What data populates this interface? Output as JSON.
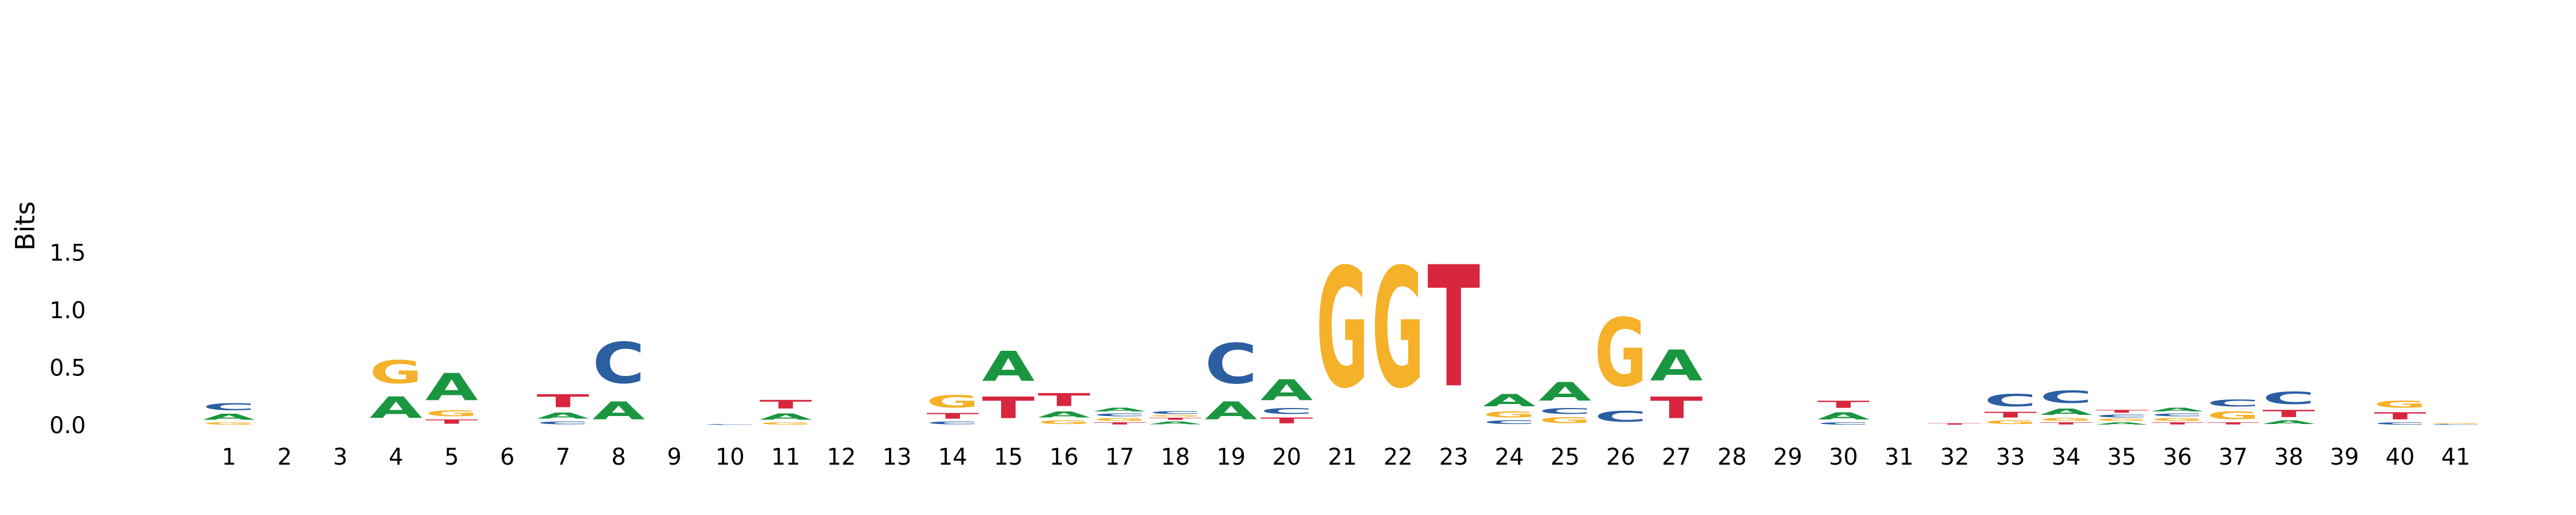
{
  "chart_data": {
    "type": "sequence-logo",
    "title": "",
    "xlabel": "",
    "ylabel": "Bits",
    "ylim": [
      0,
      1.7
    ],
    "yticks": [
      "0.0",
      "0.5",
      "1.0",
      "1.5"
    ],
    "ytick_values": [
      0,
      0.5,
      1.0,
      1.5
    ],
    "grid": false,
    "legend": "none",
    "colors": {
      "A": "#1a9641",
      "C": "#2c5ea2",
      "G": "#f5b12a",
      "T": "#d7263d"
    },
    "positions": [
      {
        "pos": 1,
        "letters": [
          {
            "b": "G",
            "h": 0.03
          },
          {
            "b": "A",
            "h": 0.08
          },
          {
            "b": "C",
            "h": 0.1
          }
        ]
      },
      {
        "pos": 2,
        "letters": []
      },
      {
        "pos": 3,
        "letters": []
      },
      {
        "pos": 4,
        "letters": [
          {
            "b": "A",
            "h": 0.3
          },
          {
            "b": "G",
            "h": 0.32
          }
        ]
      },
      {
        "pos": 5,
        "letters": [
          {
            "b": "T",
            "h": 0.06
          },
          {
            "b": "G",
            "h": 0.08
          },
          {
            "b": "A",
            "h": 0.38
          }
        ]
      },
      {
        "pos": 6,
        "letters": []
      },
      {
        "pos": 7,
        "letters": [
          {
            "b": "C",
            "h": 0.04
          },
          {
            "b": "A",
            "h": 0.08
          },
          {
            "b": "T",
            "h": 0.18
          }
        ]
      },
      {
        "pos": 8,
        "letters": [
          {
            "b": "A",
            "h": 0.25
          },
          {
            "b": "C",
            "h": 0.57
          }
        ]
      },
      {
        "pos": 9,
        "letters": []
      },
      {
        "pos": 10,
        "letters": [
          {
            "b": "C",
            "h": 0.01
          }
        ]
      },
      {
        "pos": 11,
        "letters": [
          {
            "b": "G",
            "h": 0.03
          },
          {
            "b": "A",
            "h": 0.09
          },
          {
            "b": "T",
            "h": 0.12
          }
        ]
      },
      {
        "pos": 12,
        "letters": []
      },
      {
        "pos": 13,
        "letters": []
      },
      {
        "pos": 14,
        "letters": [
          {
            "b": "C",
            "h": 0.04
          },
          {
            "b": "T",
            "h": 0.08
          },
          {
            "b": "G",
            "h": 0.17
          }
        ]
      },
      {
        "pos": 15,
        "letters": [
          {
            "b": "T",
            "h": 0.3
          },
          {
            "b": "A",
            "h": 0.42
          }
        ]
      },
      {
        "pos": 16,
        "letters": [
          {
            "b": "G",
            "h": 0.05
          },
          {
            "b": "A",
            "h": 0.08
          },
          {
            "b": "T",
            "h": 0.18
          }
        ]
      },
      {
        "pos": 17,
        "letters": [
          {
            "b": "T",
            "h": 0.03
          },
          {
            "b": "G",
            "h": 0.04
          },
          {
            "b": "C",
            "h": 0.04
          },
          {
            "b": "A",
            "h": 0.05
          }
        ]
      },
      {
        "pos": 18,
        "letters": [
          {
            "b": "A",
            "h": 0.04
          },
          {
            "b": "T",
            "h": 0.03
          },
          {
            "b": "G",
            "h": 0.02
          },
          {
            "b": "C",
            "h": 0.04
          }
        ]
      },
      {
        "pos": 19,
        "letters": [
          {
            "b": "A",
            "h": 0.25
          },
          {
            "b": "C",
            "h": 0.56
          }
        ]
      },
      {
        "pos": 20,
        "letters": [
          {
            "b": "T",
            "h": 0.08
          },
          {
            "b": "C",
            "h": 0.08
          },
          {
            "b": "A",
            "h": 0.29
          }
        ]
      },
      {
        "pos": 21,
        "letters": [
          {
            "b": "G",
            "h": 1.67
          }
        ]
      },
      {
        "pos": 22,
        "letters": [
          {
            "b": "G",
            "h": 1.67
          }
        ]
      },
      {
        "pos": 23,
        "letters": [
          {
            "b": "T",
            "h": 1.69
          }
        ]
      },
      {
        "pos": 24,
        "letters": [
          {
            "b": "C",
            "h": 0.05
          },
          {
            "b": "G",
            "h": 0.08
          },
          {
            "b": "A",
            "h": 0.17
          }
        ]
      },
      {
        "pos": 25,
        "letters": [
          {
            "b": "G",
            "h": 0.08
          },
          {
            "b": "C",
            "h": 0.08
          },
          {
            "b": "A",
            "h": 0.26
          }
        ]
      },
      {
        "pos": 26,
        "letters": [
          {
            "b": "C",
            "h": 0.15
          },
          {
            "b": "G",
            "h": 0.95
          }
        ]
      },
      {
        "pos": 27,
        "letters": [
          {
            "b": "T",
            "h": 0.3
          },
          {
            "b": "A",
            "h": 0.43
          }
        ]
      },
      {
        "pos": 28,
        "letters": []
      },
      {
        "pos": 29,
        "letters": []
      },
      {
        "pos": 30,
        "letters": [
          {
            "b": "C",
            "h": 0.03
          },
          {
            "b": "A",
            "h": 0.1
          },
          {
            "b": "T",
            "h": 0.1
          }
        ]
      },
      {
        "pos": 31,
        "letters": []
      },
      {
        "pos": 32,
        "letters": [
          {
            "b": "T",
            "h": 0.02
          }
        ]
      },
      {
        "pos": 33,
        "letters": [
          {
            "b": "G",
            "h": 0.05
          },
          {
            "b": "T",
            "h": 0.08
          },
          {
            "b": "C",
            "h": 0.17
          }
        ]
      },
      {
        "pos": 34,
        "letters": [
          {
            "b": "T",
            "h": 0.03
          },
          {
            "b": "G",
            "h": 0.04
          },
          {
            "b": "A",
            "h": 0.09
          },
          {
            "b": "C",
            "h": 0.17
          }
        ]
      },
      {
        "pos": 35,
        "letters": [
          {
            "b": "A",
            "h": 0.03
          },
          {
            "b": "G",
            "h": 0.03
          },
          {
            "b": "C",
            "h": 0.04
          },
          {
            "b": "T",
            "h": 0.04
          }
        ]
      },
      {
        "pos": 36,
        "letters": [
          {
            "b": "T",
            "h": 0.03
          },
          {
            "b": "G",
            "h": 0.04
          },
          {
            "b": "C",
            "h": 0.04
          },
          {
            "b": "A",
            "h": 0.05
          }
        ]
      },
      {
        "pos": 37,
        "letters": [
          {
            "b": "T",
            "h": 0.03
          },
          {
            "b": "G",
            "h": 0.11
          },
          {
            "b": "C",
            "h": 0.1
          }
        ]
      },
      {
        "pos": 38,
        "letters": [
          {
            "b": "A",
            "h": 0.05
          },
          {
            "b": "T",
            "h": 0.1
          },
          {
            "b": "C",
            "h": 0.17
          }
        ]
      },
      {
        "pos": 39,
        "letters": []
      },
      {
        "pos": 40,
        "letters": [
          {
            "b": "C",
            "h": 0.03
          },
          {
            "b": "T",
            "h": 0.1
          },
          {
            "b": "G",
            "h": 0.1
          }
        ]
      },
      {
        "pos": 41,
        "letters": [
          {
            "b": "C",
            "h": 0.01
          },
          {
            "b": "G",
            "h": 0.01
          }
        ]
      }
    ]
  }
}
